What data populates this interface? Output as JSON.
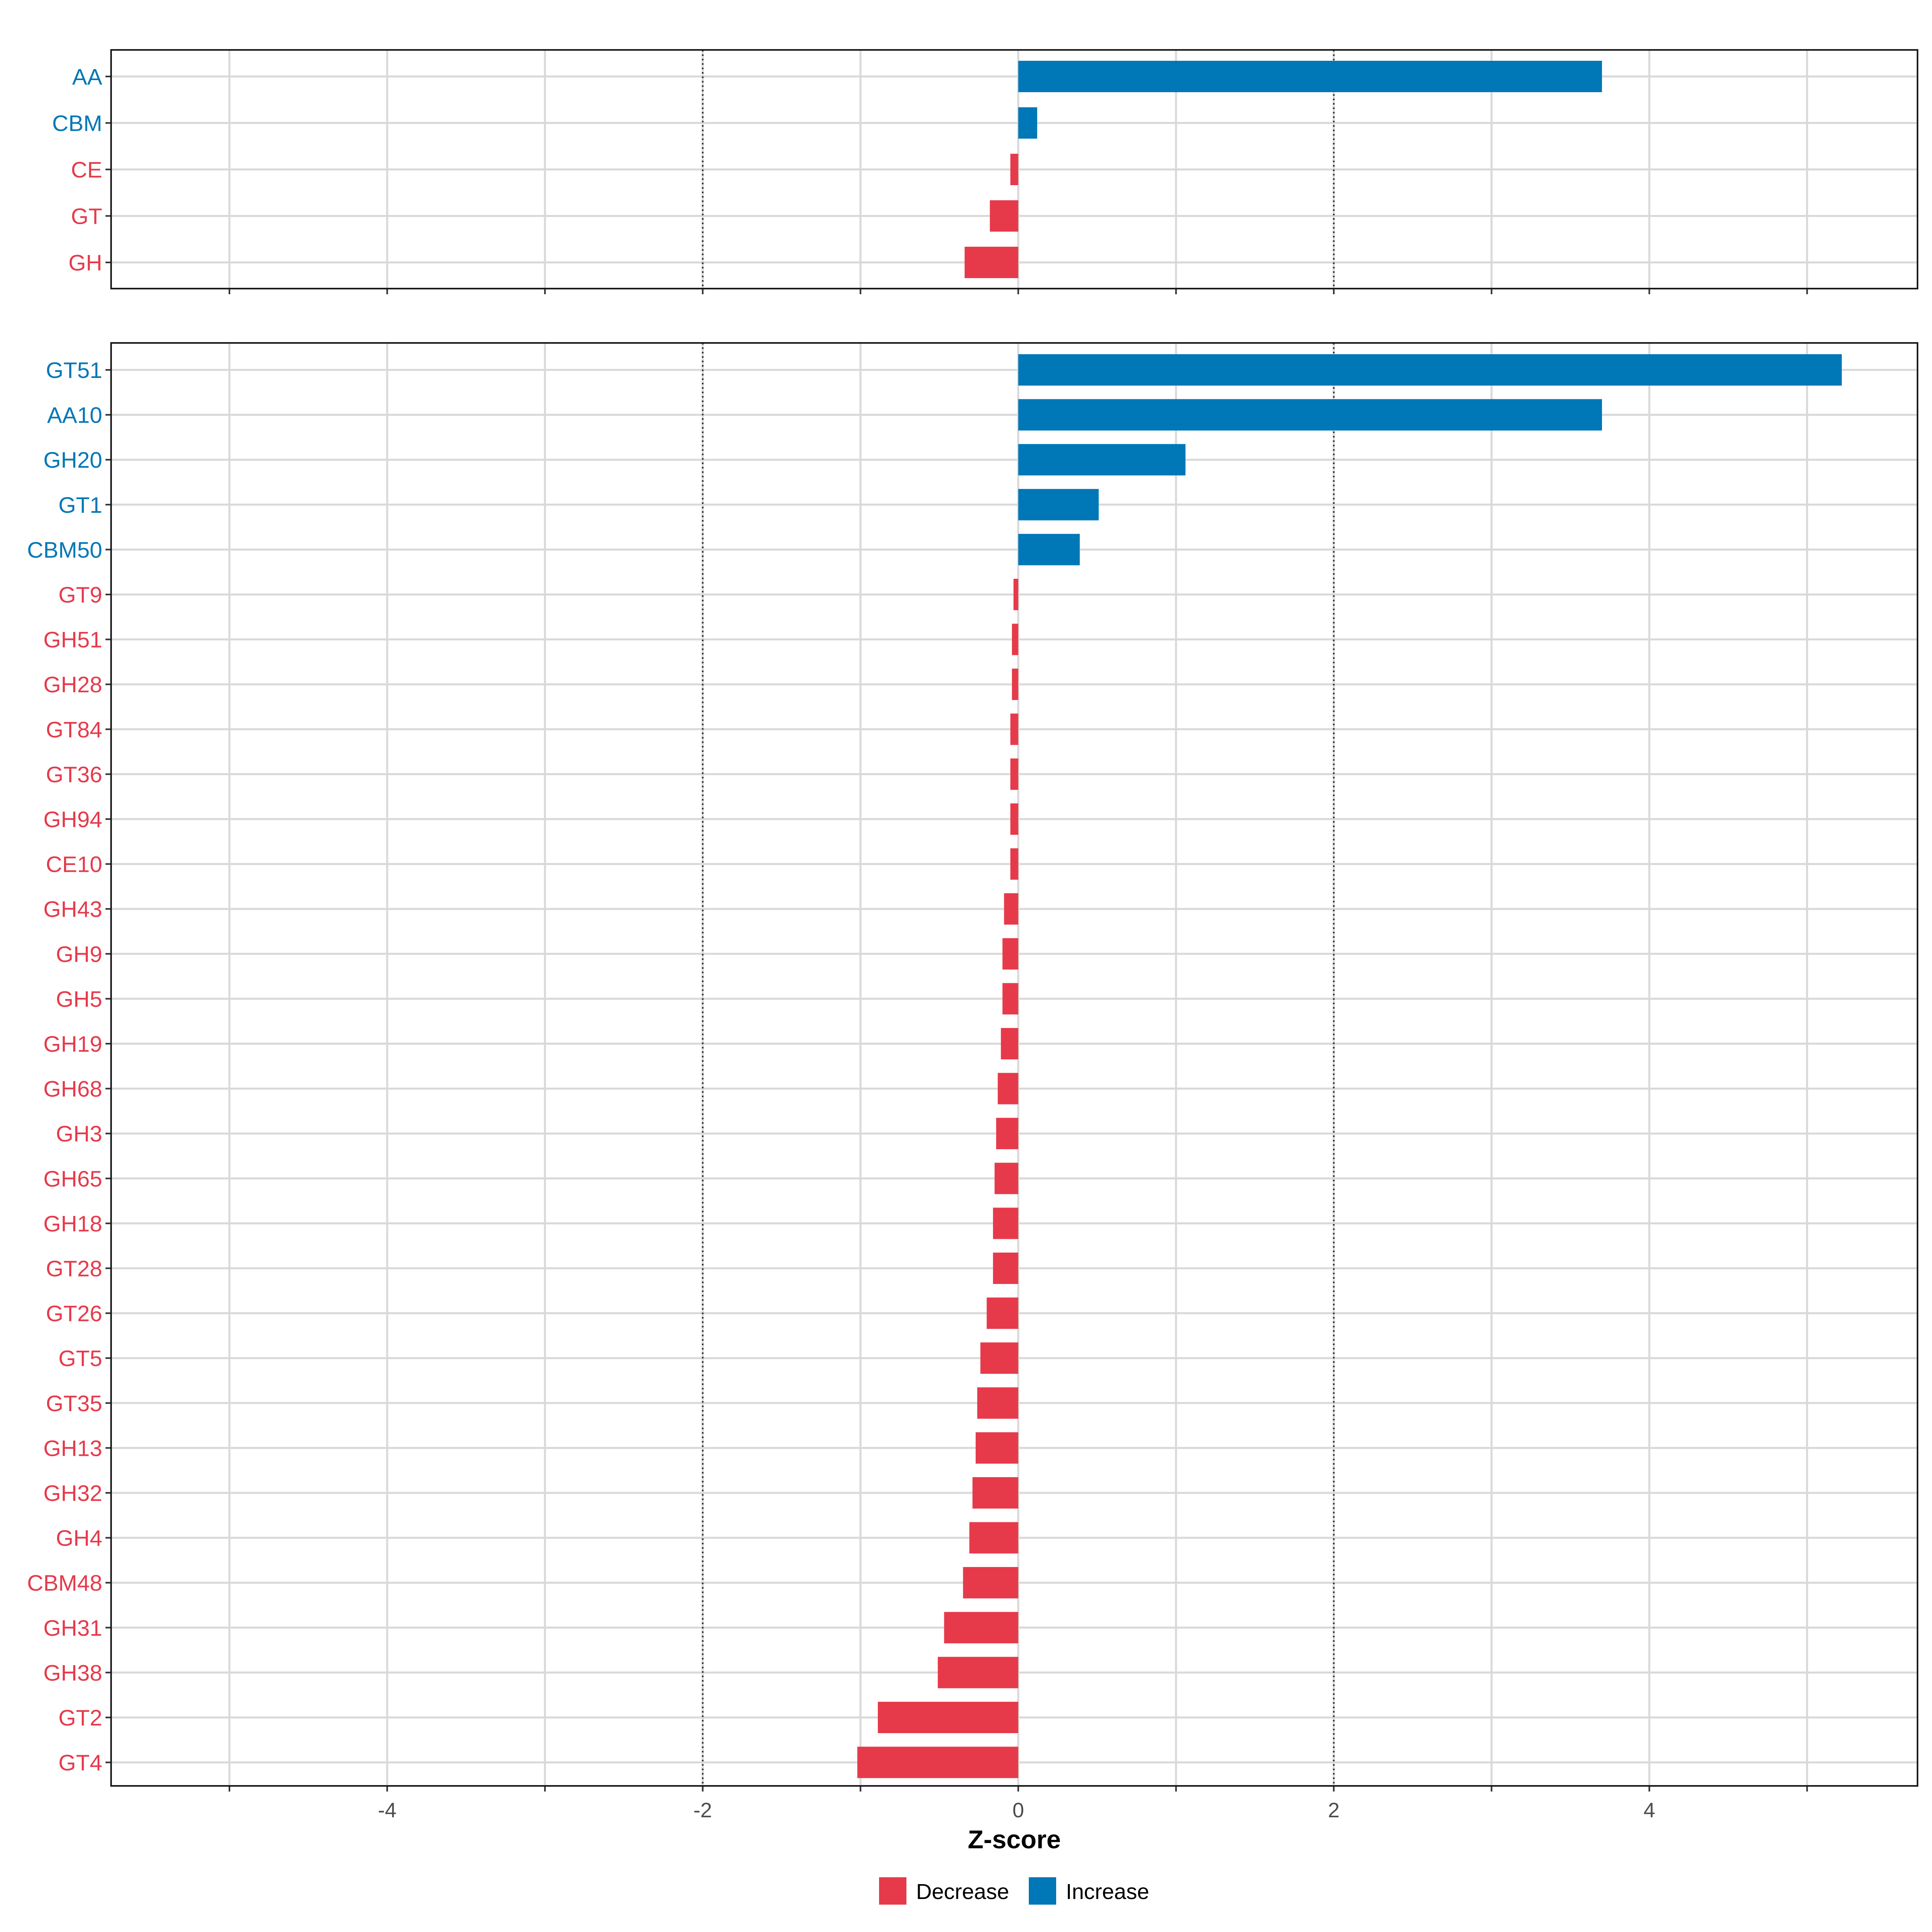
{
  "chart_data": {
    "type": "bar",
    "orientation": "horizontal",
    "xlabel": "Z-score",
    "xlim": [
      -5.75,
      5.7
    ],
    "xticks": [
      -4,
      -2,
      0,
      2,
      4
    ],
    "reference_lines": [
      -2,
      2
    ],
    "grid": true,
    "colors": {
      "Decrease": "#E63A4B",
      "Increase": "#0077B6"
    },
    "legend": {
      "position": "bottom",
      "entries": [
        "Decrease",
        "Increase"
      ]
    },
    "panels": [
      {
        "name": "top",
        "categories": [
          "AA",
          "CBM",
          "CE",
          "GT",
          "GH"
        ],
        "values": [
          3.7,
          0.12,
          -0.05,
          -0.18,
          -0.34
        ]
      },
      {
        "name": "bottom",
        "categories": [
          "GT51",
          "AA10",
          "GH20",
          "GT1",
          "CBM50",
          "GT9",
          "GH51",
          "GH28",
          "GT84",
          "GT36",
          "GH94",
          "CE10",
          "GH43",
          "GH9",
          "GH5",
          "GH19",
          "GH68",
          "GH3",
          "GH65",
          "GH18",
          "GT28",
          "GT26",
          "GT5",
          "GT35",
          "GH13",
          "GH32",
          "GH4",
          "CBM48",
          "GH31",
          "GH38",
          "GT2",
          "GT4"
        ],
        "values": [
          5.22,
          3.7,
          1.06,
          0.51,
          0.39,
          -0.03,
          -0.04,
          -0.04,
          -0.05,
          -0.05,
          -0.05,
          -0.05,
          -0.09,
          -0.1,
          -0.1,
          -0.11,
          -0.13,
          -0.14,
          -0.15,
          -0.16,
          -0.16,
          -0.2,
          -0.24,
          -0.26,
          -0.27,
          -0.29,
          -0.31,
          -0.35,
          -0.47,
          -0.51,
          -0.89,
          -1.02
        ]
      }
    ]
  }
}
